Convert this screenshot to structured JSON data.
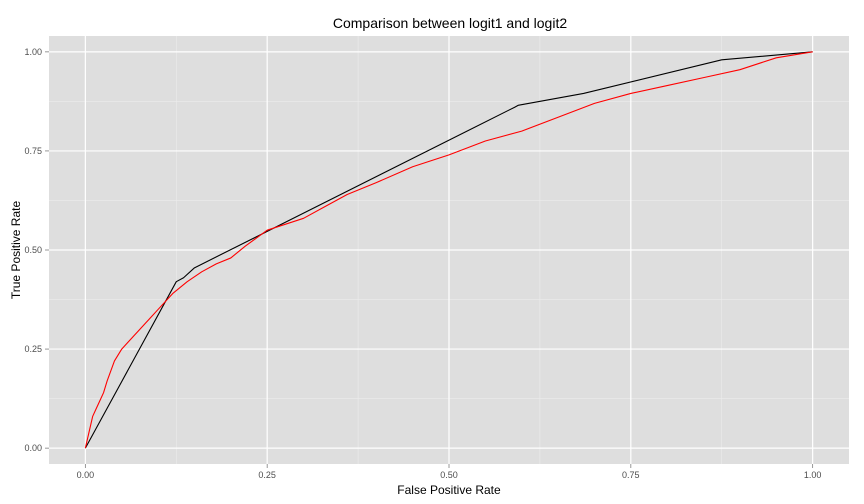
{
  "chart_data": {
    "type": "line",
    "title": "Comparison between logit1 and logit2",
    "xlabel": "False Positive Rate",
    "ylabel": "True Positive Rate",
    "xlim": [
      -0.05,
      1.05
    ],
    "ylim": [
      -0.04,
      1.04
    ],
    "x_ticks": [
      0.0,
      0.25,
      0.5,
      0.75,
      1.0
    ],
    "x_tick_labels": [
      "0.00",
      "0.25",
      "0.50",
      "0.75",
      "1.00"
    ],
    "y_ticks": [
      0.0,
      0.25,
      0.5,
      0.75,
      1.0
    ],
    "y_tick_labels": [
      "0.00",
      "0.25",
      "0.50",
      "0.75",
      "1.00"
    ],
    "grid": true,
    "background": "#dedede",
    "gridline_color": "#ffffff",
    "series": [
      {
        "color": "#000000",
        "x": [
          0.0,
          0.125,
          0.135,
          0.15,
          0.59,
          0.595,
          0.685,
          0.875,
          1.0
        ],
        "y": [
          0.0,
          0.42,
          0.43,
          0.455,
          0.86,
          0.865,
          0.895,
          0.98,
          1.0
        ]
      },
      {
        "color": "#ff0000",
        "x": [
          0.0,
          0.005,
          0.01,
          0.015,
          0.02,
          0.025,
          0.03,
          0.04,
          0.05,
          0.06,
          0.075,
          0.09,
          0.1,
          0.12,
          0.14,
          0.16,
          0.18,
          0.2,
          0.22,
          0.25,
          0.3,
          0.33,
          0.36,
          0.4,
          0.45,
          0.5,
          0.55,
          0.6,
          0.65,
          0.7,
          0.75,
          0.8,
          0.85,
          0.9,
          0.95,
          1.0
        ],
        "y": [
          0.0,
          0.04,
          0.08,
          0.1,
          0.12,
          0.14,
          0.17,
          0.22,
          0.25,
          0.27,
          0.3,
          0.33,
          0.35,
          0.39,
          0.42,
          0.445,
          0.465,
          0.48,
          0.51,
          0.55,
          0.58,
          0.61,
          0.64,
          0.67,
          0.71,
          0.74,
          0.775,
          0.8,
          0.835,
          0.87,
          0.895,
          0.915,
          0.935,
          0.955,
          0.985,
          1.0
        ]
      }
    ]
  }
}
